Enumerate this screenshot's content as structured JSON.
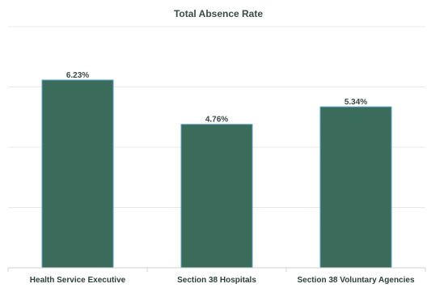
{
  "chart_data": {
    "type": "bar",
    "title": "Total Absence Rate",
    "categories": [
      "Health Service Executive",
      "Section 38 Hospitals",
      "Section 38 Voluntary Agencies"
    ],
    "values": [
      6.23,
      4.76,
      5.34
    ],
    "value_labels": [
      "6.23%",
      "4.76%",
      "5.34%"
    ],
    "xlabel": "",
    "ylabel": "",
    "ylim": [
      0,
      8
    ],
    "grid": true,
    "legend": "none",
    "bar_color": "#3b6b5a",
    "bar_edge_color": "#5aa0c8"
  }
}
